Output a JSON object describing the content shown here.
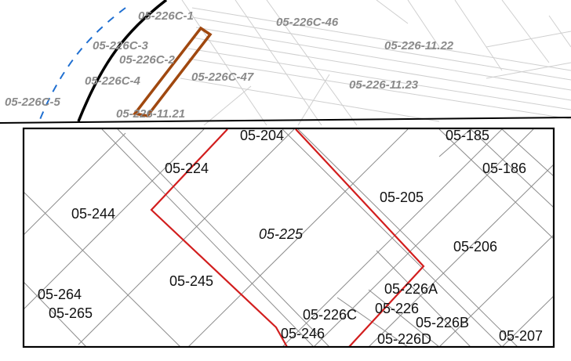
{
  "inset_parcels": [
    "05-226C-1",
    "05-226C-46",
    "05-226C-3",
    "05-226-11.22",
    "05-226C-2",
    "05-226C-4",
    "05-226C-47",
    "05-226-11.23",
    "05-226C-5",
    "05-226-11.21"
  ],
  "main_parcels": {
    "p204": "05-204",
    "p185": "05-185",
    "p224": "05-224",
    "p186": "05-186",
    "p205": "05-205",
    "p244": "05-244",
    "p225": "05-225",
    "p206": "05-206",
    "p245": "05-245",
    "p226A": "05-226A",
    "p264": "05-264",
    "p226": "05-226",
    "p265": "05-265",
    "p226C": "05-226C",
    "p226B": "05-226B",
    "p246": "05-246",
    "p207": "05-207",
    "p226D": "05-226D"
  },
  "colors": {
    "parcel_line": "#8c8c8c",
    "highlight_red": "#d21e1e",
    "highlight_brown": "#a0480f",
    "boundary_black": "#000000",
    "boundary_blue": "#1f6fd1"
  }
}
